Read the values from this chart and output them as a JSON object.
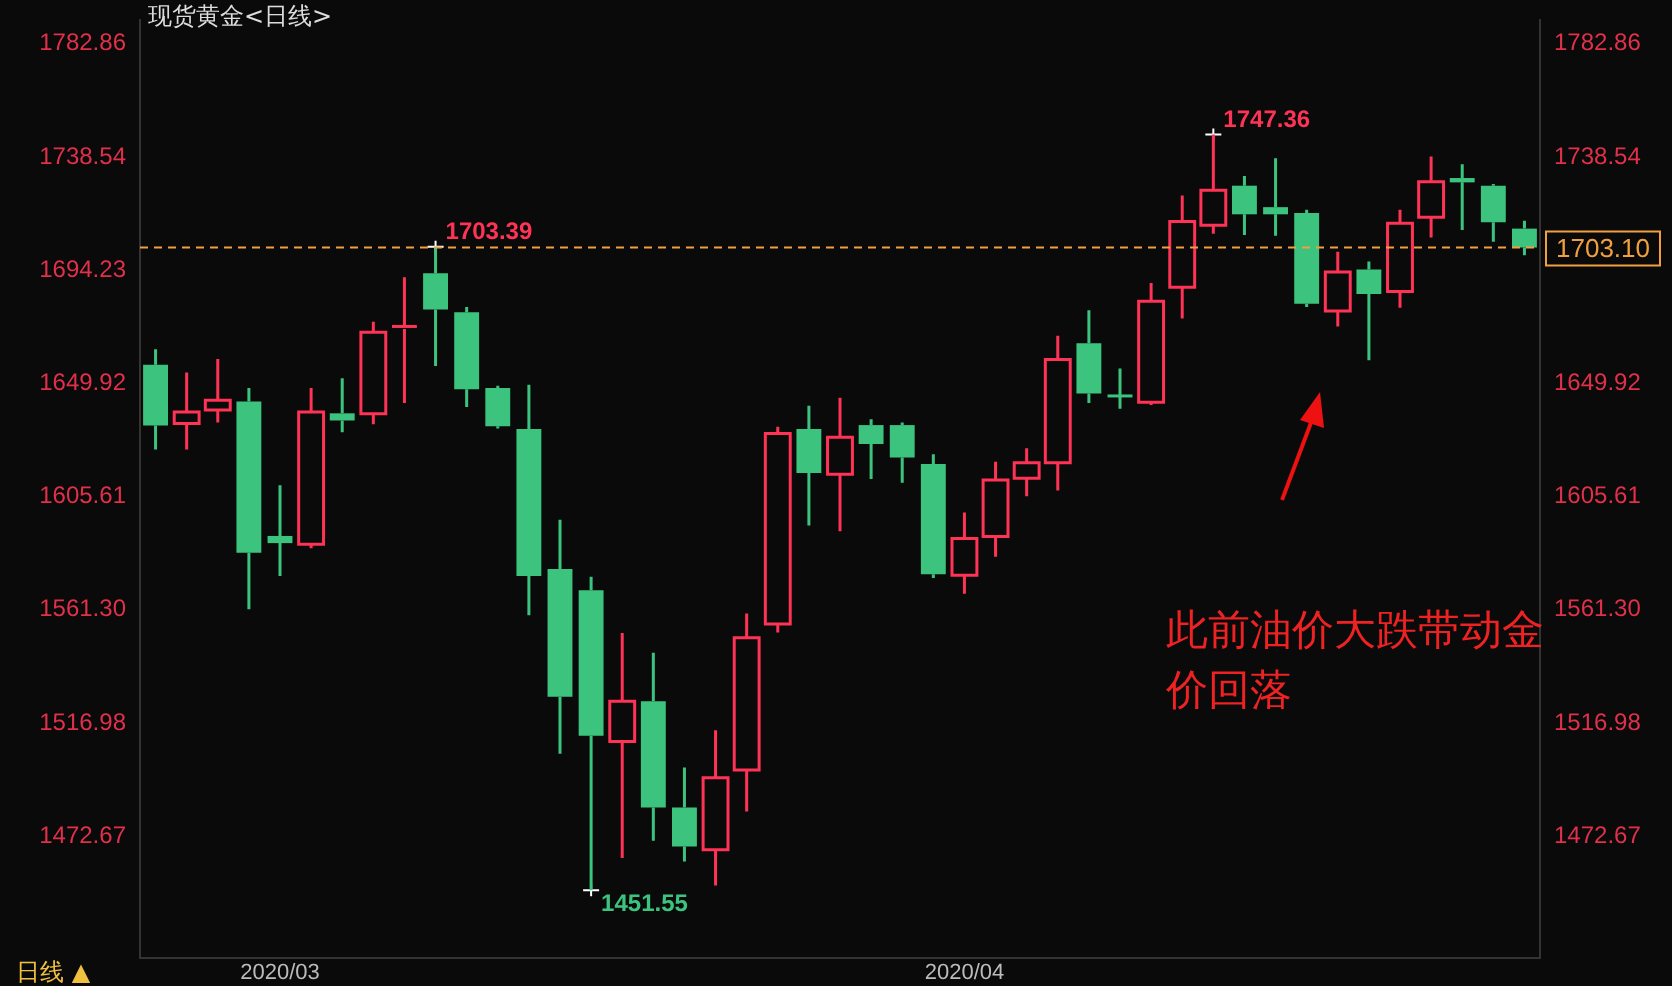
{
  "chart_data": {
    "type": "candlestick",
    "title": "现货黄金<日线>",
    "categories": [
      null,
      null,
      null,
      null,
      "2020/03",
      null,
      null,
      null,
      null,
      null,
      null,
      null,
      null,
      null,
      null,
      null,
      null,
      null,
      null,
      null,
      null,
      null,
      null,
      null,
      null,
      null,
      "2020/04",
      null,
      null,
      null,
      null,
      null,
      null,
      null,
      null,
      null,
      null,
      null,
      null,
      null,
      null,
      null,
      null,
      null,
      null
    ],
    "ohlc": [
      [
        1657.2,
        1663.3,
        1624.0,
        1633.4
      ],
      [
        1634.2,
        1654.2,
        1624.0,
        1638.7
      ],
      [
        1639.5,
        1659.5,
        1634.6,
        1643.3
      ],
      [
        1642.8,
        1648.1,
        1561.5,
        1583.6
      ],
      [
        1590.2,
        1610.0,
        1574.5,
        1587.4
      ],
      [
        1587.0,
        1648.1,
        1585.4,
        1638.7
      ],
      [
        1638.2,
        1651.9,
        1630.8,
        1635.4
      ],
      [
        1638.0,
        1674.0,
        1633.9,
        1669.9
      ],
      [
        1671.2,
        1691.5,
        1642.2,
        1672.2
      ],
      [
        1693.0,
        1703.39,
        1656.7,
        1678.8
      ],
      [
        1677.8,
        1679.8,
        1640.7,
        1647.6
      ],
      [
        1648.1,
        1649.0,
        1632.3,
        1633.1
      ],
      [
        1632.1,
        1649.4,
        1559.2,
        1574.5
      ],
      [
        1577.3,
        1596.5,
        1504.9,
        1527.3
      ],
      [
        1568.9,
        1574.2,
        1451.55,
        1512.0
      ],
      [
        1509.7,
        1552.2,
        1464.1,
        1525.5
      ],
      [
        1525.5,
        1544.5,
        1470.9,
        1483.9
      ],
      [
        1483.9,
        1499.6,
        1462.8,
        1468.6
      ],
      [
        1467.4,
        1514.1,
        1453.4,
        1495.6
      ],
      [
        1498.6,
        1559.8,
        1482.3,
        1550.4
      ],
      [
        1555.7,
        1632.9,
        1552.4,
        1630.3
      ],
      [
        1632.1,
        1641.2,
        1594.3,
        1614.8
      ],
      [
        1614.4,
        1644.3,
        1592.0,
        1628.8
      ],
      [
        1633.6,
        1635.9,
        1612.5,
        1626.2
      ],
      [
        1633.6,
        1634.6,
        1611.0,
        1620.9
      ],
      [
        1618.4,
        1622.2,
        1573.7,
        1575.2
      ],
      [
        1574.8,
        1599.4,
        1567.6,
        1589.2
      ],
      [
        1590.0,
        1619.2,
        1582.1,
        1612.1
      ],
      [
        1612.8,
        1624.5,
        1605.7,
        1618.9
      ],
      [
        1618.9,
        1668.6,
        1608.0,
        1659.3
      ],
      [
        1665.6,
        1678.5,
        1642.2,
        1646.0
      ],
      [
        1645.0,
        1655.7,
        1640.0,
        1644.8
      ],
      [
        1642.5,
        1689.2,
        1641.5,
        1682.1
      ],
      [
        1687.5,
        1723.5,
        1675.3,
        1713.3
      ],
      [
        1711.8,
        1747.36,
        1708.5,
        1725.5
      ],
      [
        1727.3,
        1731.1,
        1708.0,
        1716.1
      ],
      [
        1718.9,
        1738.0,
        1707.7,
        1716.1
      ],
      [
        1716.6,
        1717.9,
        1679.8,
        1681.1
      ],
      [
        1678.3,
        1701.4,
        1672.2,
        1693.5
      ],
      [
        1694.5,
        1697.6,
        1659.0,
        1684.9
      ],
      [
        1685.9,
        1717.9,
        1679.5,
        1712.6
      ],
      [
        1714.9,
        1738.7,
        1707.0,
        1728.8
      ],
      [
        1730.3,
        1735.7,
        1710.0,
        1728.6
      ],
      [
        1727.3,
        1728.0,
        1705.4,
        1713.0
      ],
      [
        1710.5,
        1713.6,
        1700.1,
        1703.1
      ]
    ],
    "colors": [
      "#3cc47f",
      "#ff3355",
      "#ff3355",
      "#3cc47f",
      "#3cc47f",
      "#ff3355",
      "#3cc47f",
      "#ff3355",
      "#ff3355",
      "#3cc47f",
      "#3cc47f",
      "#3cc47f",
      "#3cc47f",
      "#3cc47f",
      "#3cc47f",
      "#ff3355",
      "#3cc47f",
      "#3cc47f",
      "#ff3355",
      "#ff3355",
      "#ff3355",
      "#3cc47f",
      "#ff3355",
      "#3cc47f",
      "#3cc47f",
      "#3cc47f",
      "#ff3355",
      "#ff3355",
      "#ff3355",
      "#ff3355",
      "#3cc47f",
      "#3cc47f",
      "#ff3355",
      "#ff3355",
      "#ff3355",
      "#3cc47f",
      "#3cc47f",
      "#3cc47f",
      "#ff3355",
      "#3cc47f",
      "#ff3355",
      "#ff3355",
      "#3cc47f",
      "#3cc47f",
      "#3cc47f"
    ],
    "ylim": [
      1425,
      1792
    ],
    "yticks": [
      1472.67,
      1516.98,
      {
        "value": 1561.3,
        "label": "1561.30"
      },
      1605.61,
      1649.92,
      1694.23,
      1738.54,
      1782.86
    ],
    "y2lim": [
      1425,
      1792
    ],
    "y2ticks": [
      1472.67,
      1516.98,
      {
        "value": 1561.3,
        "label": "1561.30"
      },
      1605.61,
      1649.92,
      1738.54,
      1782.86
    ],
    "ref_lines": [
      {
        "axis": "y2",
        "value": 1703.1,
        "label": "1703.10",
        "color": "#f0a040",
        "line_style": "dashed"
      }
    ],
    "annotations": [
      "1747.36",
      "1703.39",
      "1451.55",
      "此前油价大跌带动金价回落",
      "日线 ▲"
    ],
    "grid": false
  }
}
